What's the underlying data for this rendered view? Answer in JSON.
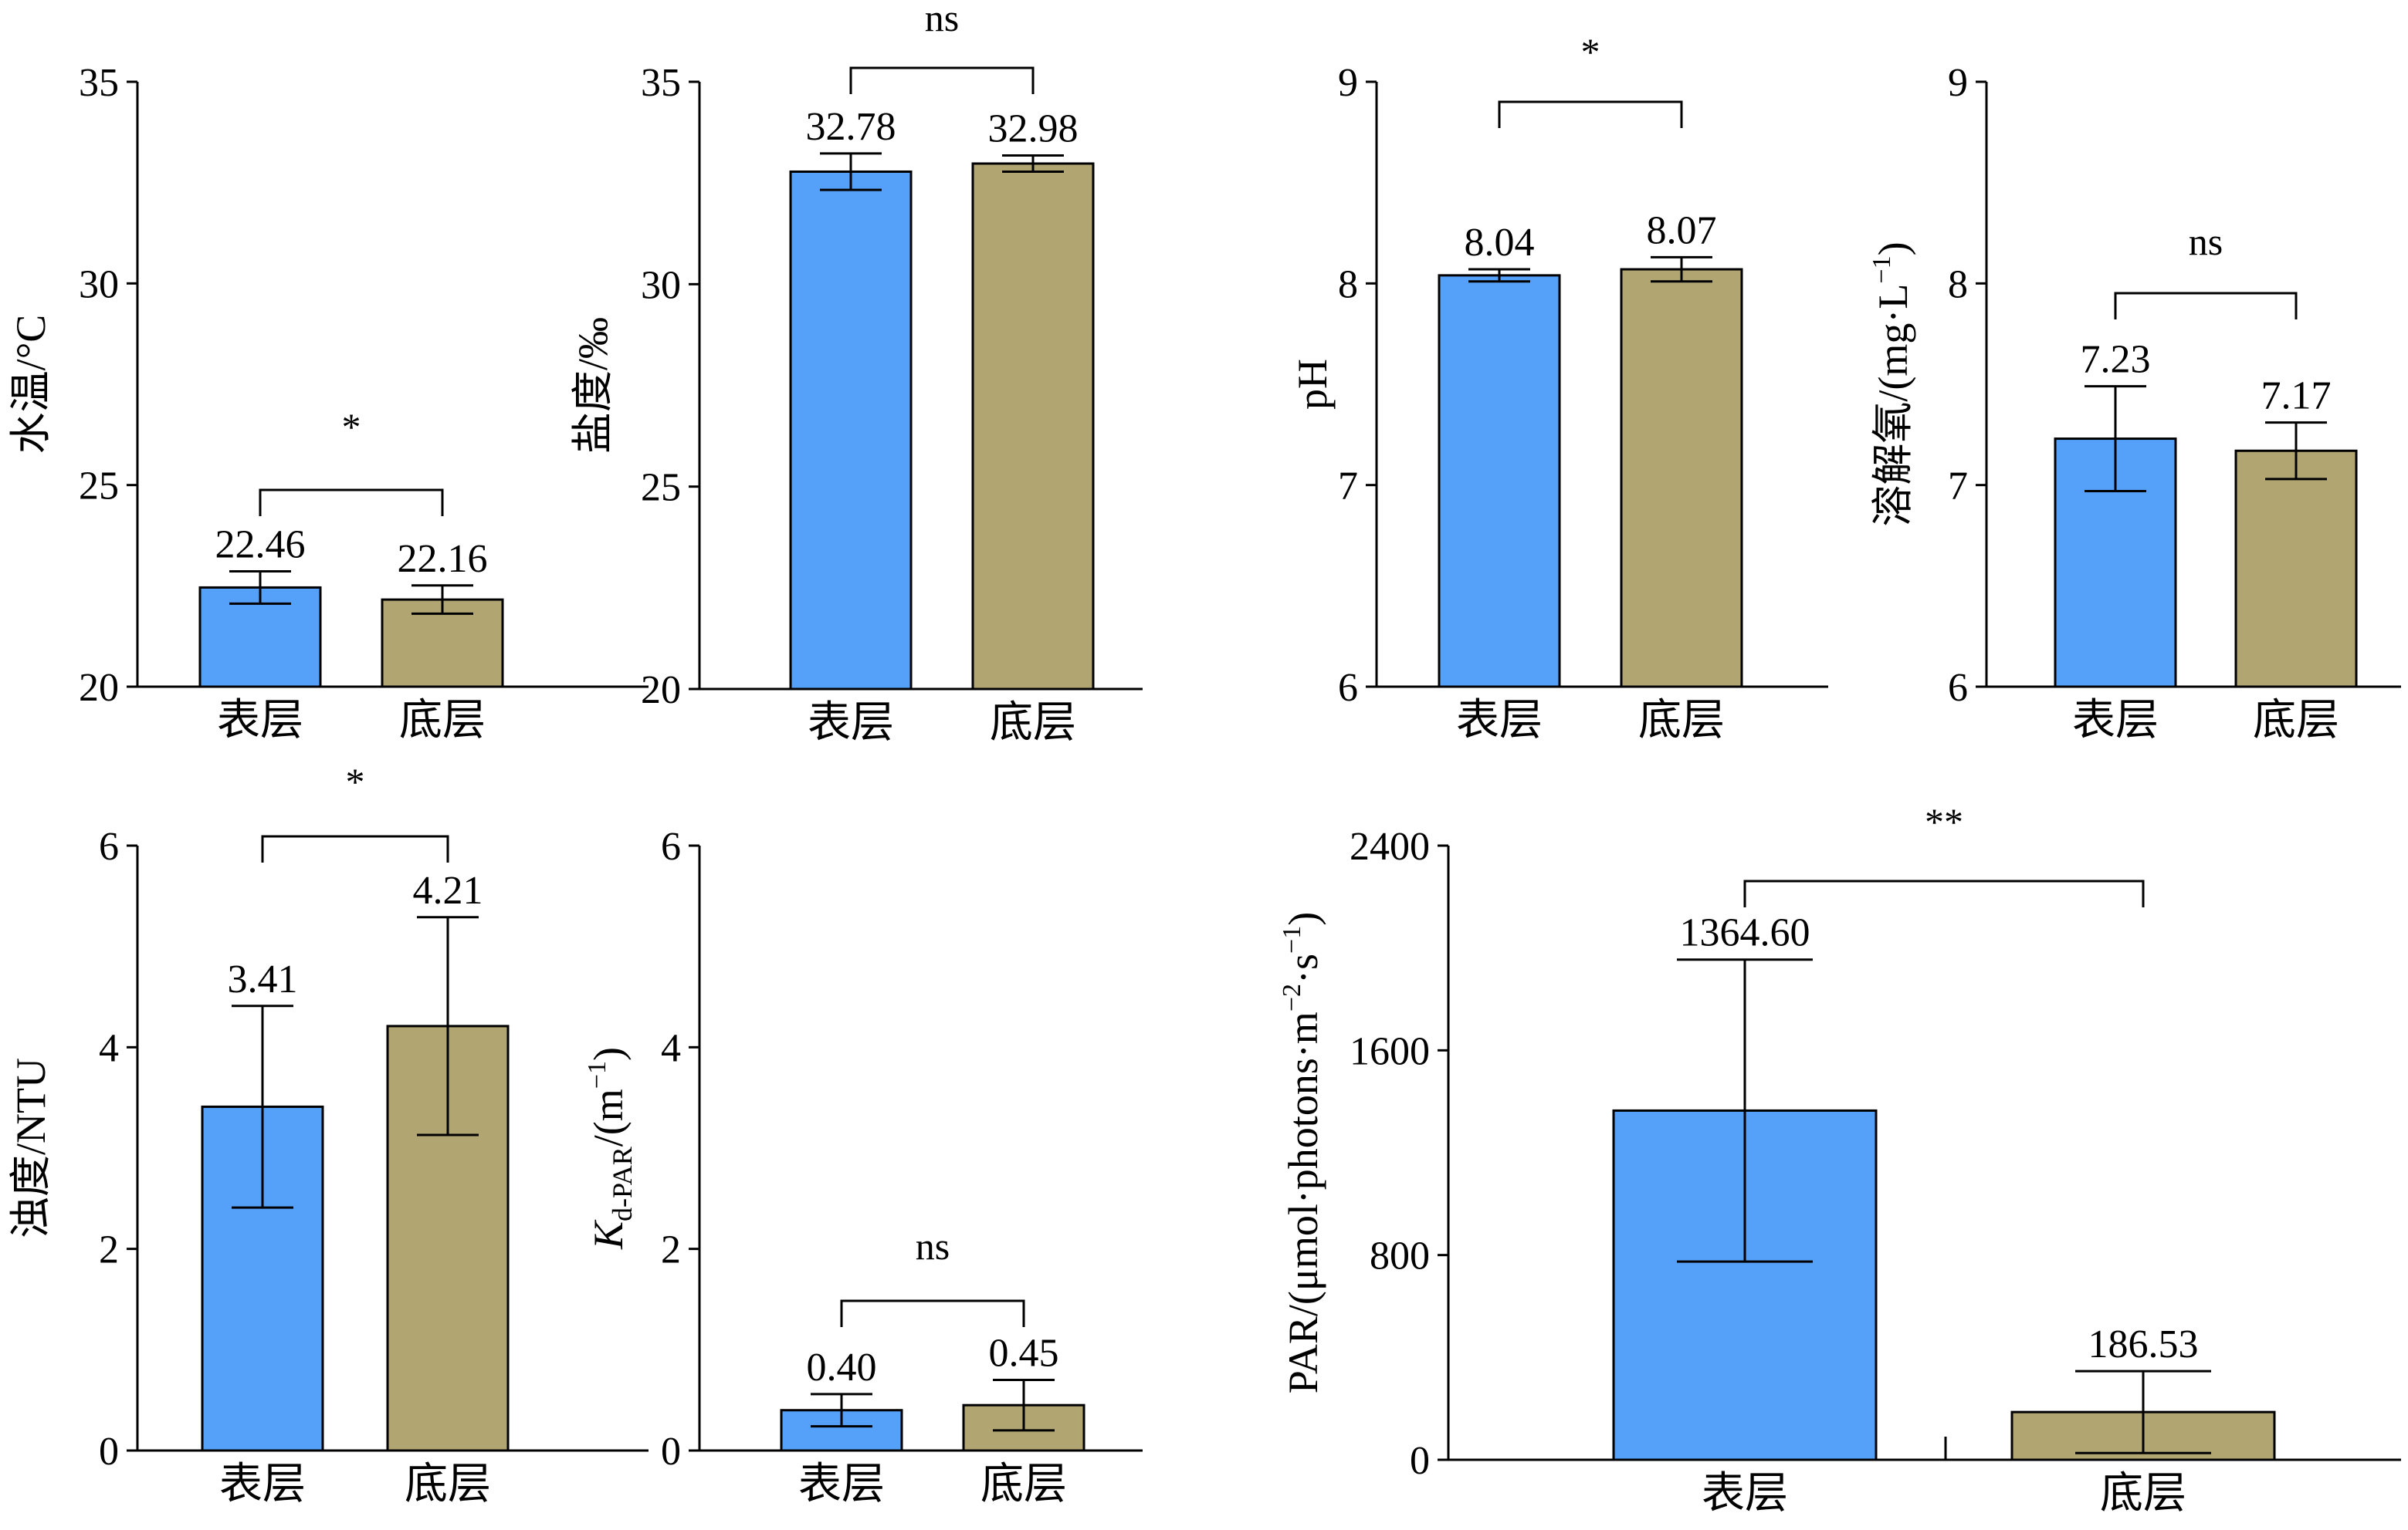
{
  "colors": {
    "surface": "#55a1fa",
    "bottom": "#b1a672",
    "axis": "#000000"
  },
  "chart_data": [
    {
      "id": "water-temp",
      "type": "bar",
      "ylabel": "水温/°C",
      "categories": [
        "表层",
        "底层"
      ],
      "values": [
        22.46,
        22.16
      ],
      "errors": [
        0.4,
        0.35
      ],
      "value_labels": [
        "22.46",
        "22.16"
      ],
      "ylim": [
        20,
        35
      ],
      "yticks": [
        20,
        25,
        30,
        35
      ],
      "tick_labels": [
        "20",
        "25",
        "30",
        "35"
      ],
      "significance": "*"
    },
    {
      "id": "salinity",
      "type": "bar",
      "ylabel": "盐度/‰",
      "categories": [
        "表层",
        "底层"
      ],
      "values": [
        32.78,
        32.98
      ],
      "errors": [
        0.45,
        0.2
      ],
      "value_labels": [
        "32.78",
        "32.98"
      ],
      "ylim": [
        20,
        35
      ],
      "yticks": [
        20,
        25,
        30,
        35
      ],
      "tick_labels": [
        "20",
        "25",
        "30",
        "35"
      ],
      "significance": "ns"
    },
    {
      "id": "ph",
      "type": "bar",
      "ylabel": "pH",
      "categories": [
        "表层",
        "底层"
      ],
      "values": [
        8.04,
        8.07
      ],
      "errors": [
        0.03,
        0.06
      ],
      "value_labels": [
        "8.04",
        "8.07"
      ],
      "ylim": [
        6,
        9
      ],
      "yticks": [
        6,
        7,
        8,
        9
      ],
      "tick_labels": [
        "6",
        "7",
        "8",
        "9"
      ],
      "significance": "*"
    },
    {
      "id": "dissolved-oxygen",
      "type": "bar",
      "ylabel": "溶解氧/(mg·L",
      "ylabel_sup": "−1",
      "ylabel_tail": ")",
      "categories": [
        "表层",
        "底层"
      ],
      "values": [
        7.23,
        7.17
      ],
      "errors": [
        0.26,
        0.14
      ],
      "value_labels": [
        "7.23",
        "7.17"
      ],
      "ylim": [
        6,
        9
      ],
      "yticks": [
        6,
        7,
        8,
        9
      ],
      "tick_labels": [
        "6",
        "7",
        "8",
        "9"
      ],
      "significance": "ns"
    },
    {
      "id": "turbidity",
      "type": "bar",
      "ylabel": "浊度/NTU",
      "categories": [
        "表层",
        "底层"
      ],
      "values": [
        3.41,
        4.21
      ],
      "errors": [
        1.0,
        1.08
      ],
      "value_labels": [
        "3.41",
        "4.21"
      ],
      "ylim": [
        0,
        6
      ],
      "yticks": [
        0,
        2,
        4,
        6
      ],
      "tick_labels": [
        "0",
        "2",
        "4",
        "6"
      ],
      "significance": "*"
    },
    {
      "id": "kd-par",
      "type": "bar",
      "ylabel": "K",
      "ylabel_sub": "d-PAR",
      "ylabel_mid": "/(m",
      "ylabel_sup": "−1",
      "ylabel_tail": ")",
      "categories": [
        "表层",
        "底层"
      ],
      "values": [
        0.4,
        0.45
      ],
      "errors": [
        0.16,
        0.25
      ],
      "value_labels": [
        "0.40",
        "0.45"
      ],
      "ylim": [
        0,
        6
      ],
      "yticks": [
        0,
        2,
        4,
        6
      ],
      "tick_labels": [
        "0",
        "2",
        "4",
        "6"
      ],
      "significance": "ns"
    },
    {
      "id": "par",
      "type": "bar",
      "ylabel": "PAR/(μmol·photons·m",
      "ylabel_sup": "−2",
      "ylabel_mid2": "·s",
      "ylabel_sup2": "−1",
      "ylabel_tail": ")",
      "categories": [
        "表层",
        "底层"
      ],
      "values": [
        1364.6,
        186.53
      ],
      "errors": [
        590,
        160
      ],
      "value_labels": [
        "1364.60",
        "186.53"
      ],
      "ylim": [
        0,
        2400
      ],
      "yticks": [
        0,
        800,
        1600,
        2400
      ],
      "tick_labels": [
        "0",
        "800",
        "1600",
        "2400"
      ],
      "significance": "**"
    }
  ]
}
